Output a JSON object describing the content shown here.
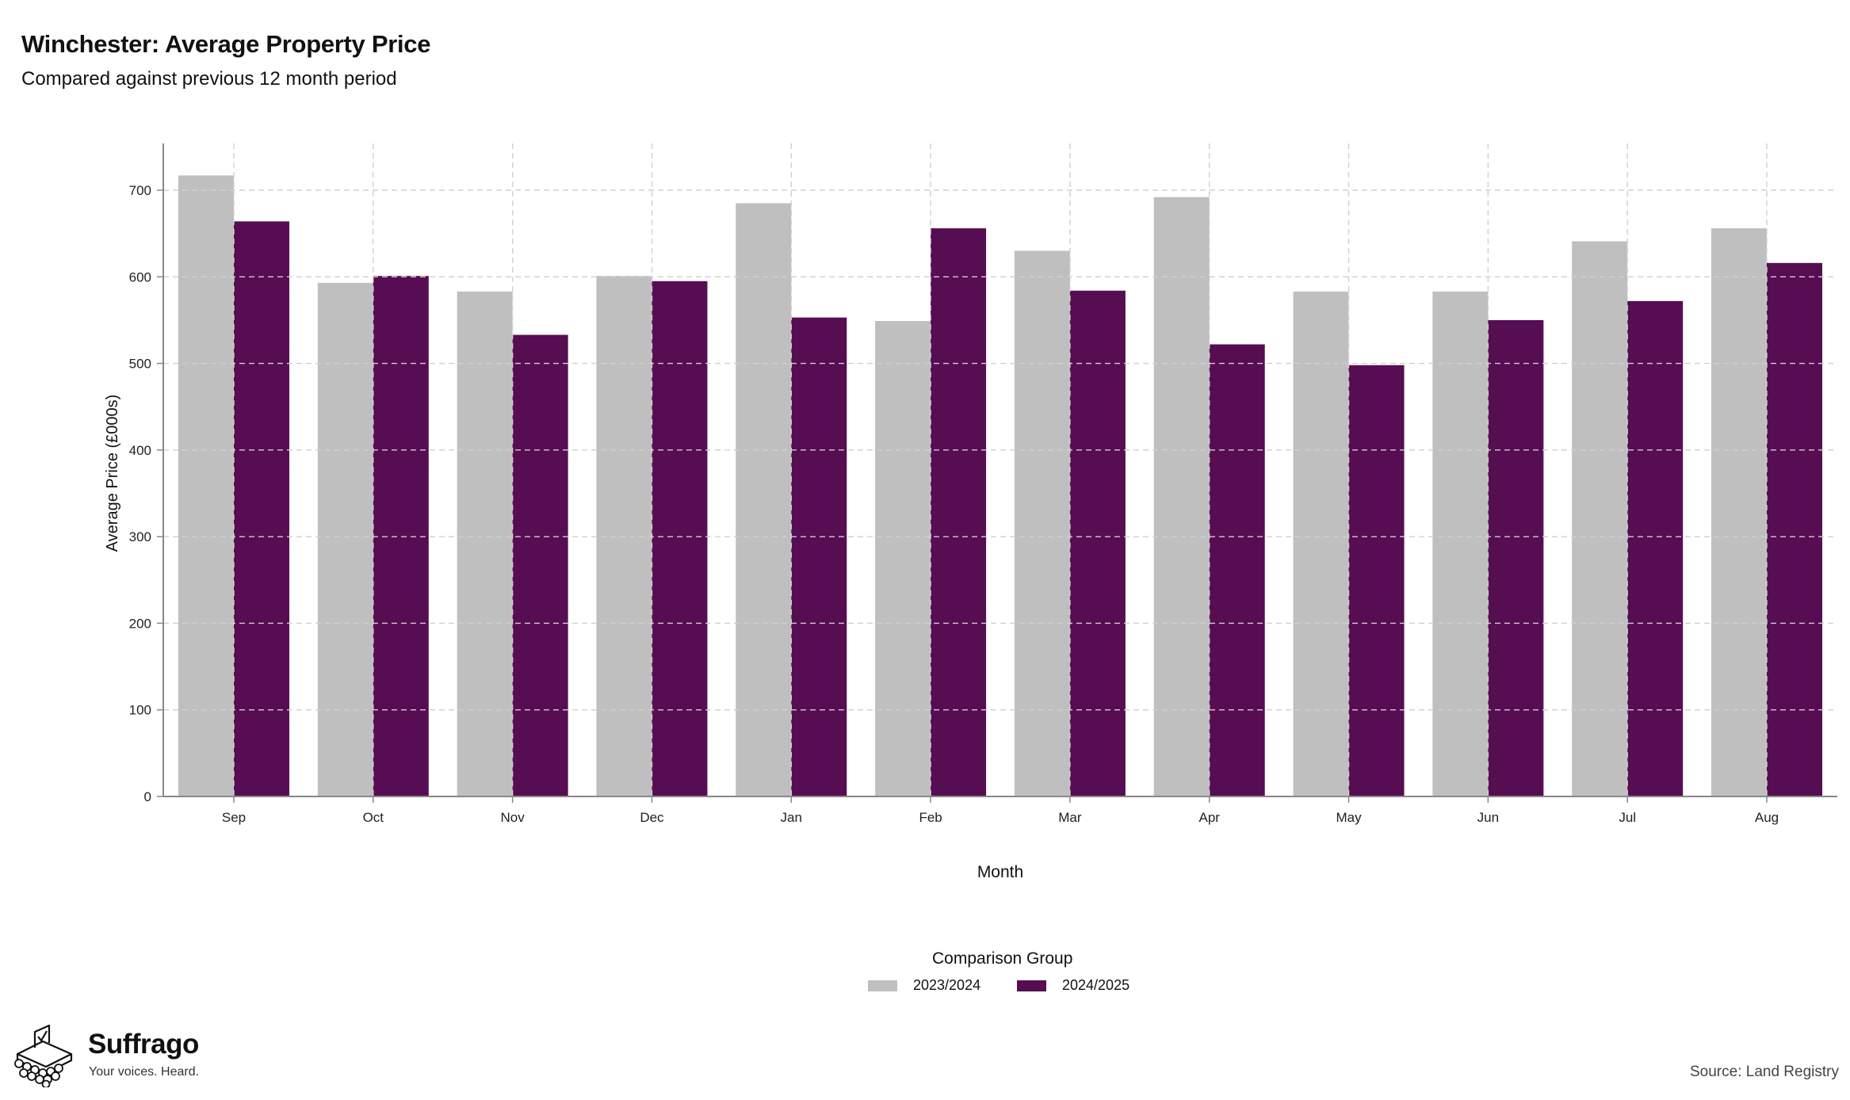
{
  "chart_data": {
    "type": "bar",
    "title": "Winchester: Average Property Price",
    "subtitle": "Compared against previous 12 month period",
    "xlabel": "Month",
    "ylabel": "Average Price (£000s)",
    "ylim": [
      0,
      700
    ],
    "yticks": [
      0,
      100,
      200,
      300,
      400,
      500,
      600,
      700
    ],
    "grid": true,
    "categories": [
      "Sep",
      "Oct",
      "Nov",
      "Dec",
      "Jan",
      "Feb",
      "Mar",
      "Apr",
      "May",
      "Jun",
      "Jul",
      "Aug"
    ],
    "series": [
      {
        "name": "2023/2024",
        "color": "#bfbfbf",
        "values": [
          717,
          593,
          583,
          601,
          685,
          549,
          630,
          692,
          583,
          583,
          641,
          656
        ]
      },
      {
        "name": "2024/2025",
        "color": "#560d52",
        "values": [
          664,
          601,
          533,
          595,
          553,
          656,
          584,
          522,
          498,
          550,
          572,
          616
        ]
      }
    ],
    "legend": {
      "title": "Comparison Group",
      "position": "bottom"
    }
  },
  "branding": {
    "name": "Suffrago",
    "tagline": "Your voices. Heard."
  },
  "source": "Source: Land Registry"
}
